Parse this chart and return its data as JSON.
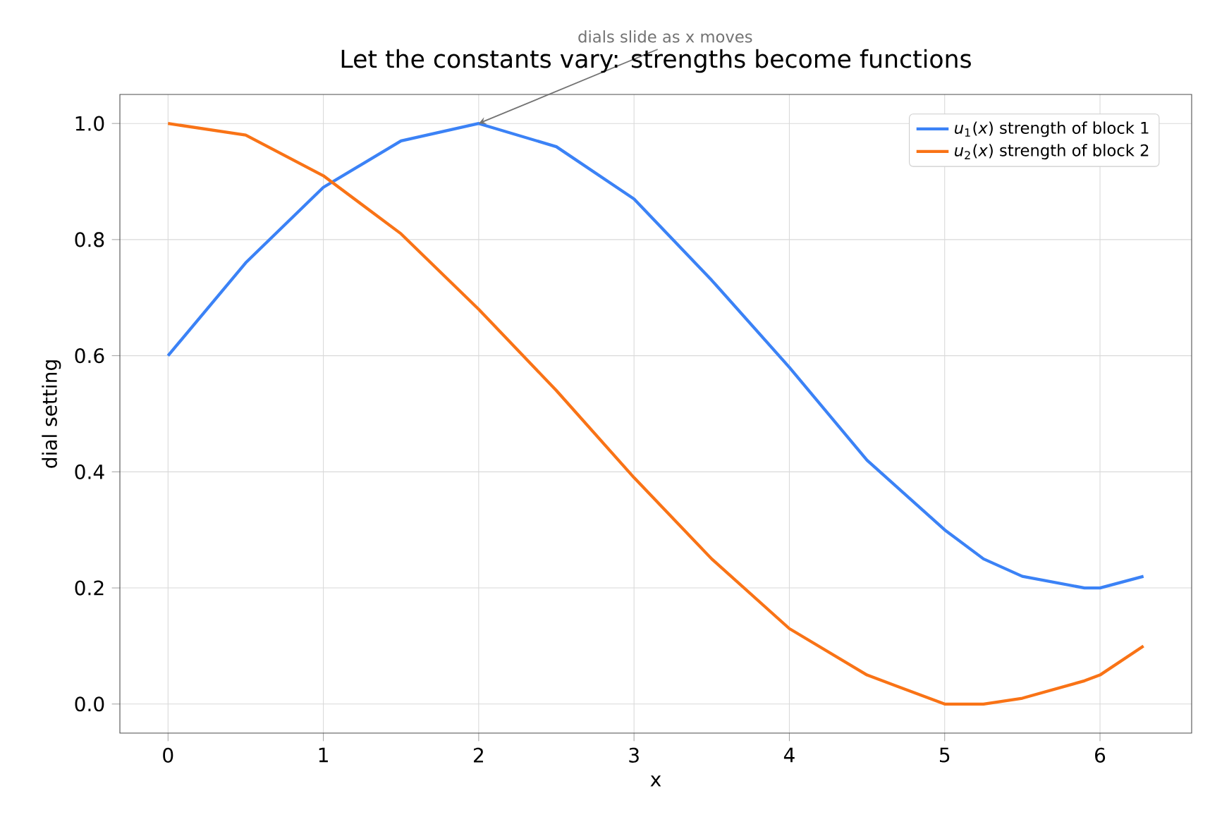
{
  "chart_data": {
    "type": "line",
    "title": "Let the constants vary: strengths become functions",
    "xlabel": "x",
    "ylabel": "dial setting",
    "x": [
      0,
      0.5,
      1,
      1.5,
      2,
      2.5,
      3,
      3.5,
      4,
      4.5,
      5,
      5.25,
      5.5,
      5.9,
      6,
      6.28
    ],
    "series": [
      {
        "name": "*u*$_{1}$(*x*) strength of block 1",
        "color": "#3b82f6",
        "values": [
          0.6,
          0.76,
          0.89,
          0.97,
          1.0,
          0.96,
          0.87,
          0.73,
          0.58,
          0.42,
          0.3,
          0.25,
          0.22,
          0.2,
          0.2,
          0.22
        ]
      },
      {
        "name": "*u*$_{2}$(*x*) strength of block 2",
        "color": "#f97316",
        "values": [
          1.0,
          0.98,
          0.91,
          0.81,
          0.68,
          0.54,
          0.39,
          0.25,
          0.13,
          0.05,
          0.0,
          0.0,
          0.01,
          0.04,
          0.05,
          0.1
        ]
      }
    ],
    "annotations": [
      {
        "text": "dials slide as x moves",
        "x": 2,
        "y": 1.0
      }
    ],
    "xlim": [
      -0.31,
      6.59
    ],
    "ylim": [
      -0.05,
      1.05
    ],
    "xticks": [
      0,
      1,
      2,
      3,
      4,
      5,
      6
    ],
    "yticks": [
      {
        "value": 0,
        "label": "0.0"
      },
      {
        "value": 0.2,
        "label": "0.2"
      },
      {
        "value": 0.4,
        "label": "0.4"
      },
      {
        "value": 0.6,
        "label": "0.6"
      },
      {
        "value": 0.8,
        "label": "0.8"
      },
      {
        "value": 1.0,
        "label": "1.0"
      }
    ],
    "grid": true,
    "legend": "top right",
    "marker": "none",
    "line_style": "solid"
  }
}
